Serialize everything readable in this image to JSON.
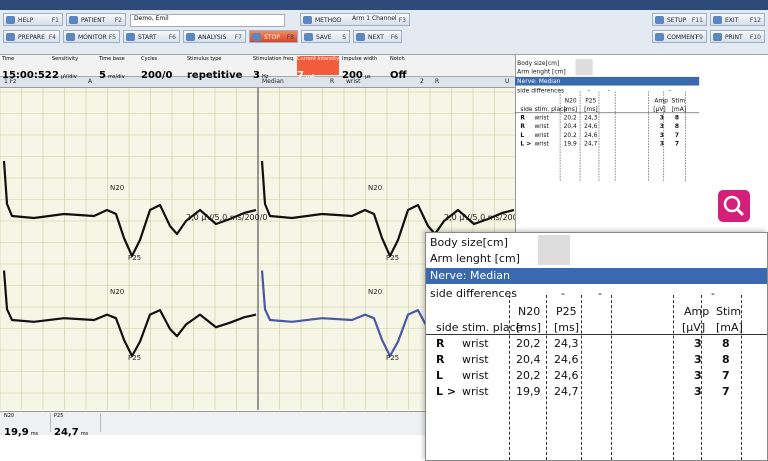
{
  "toolbar": {
    "row1_left": [
      {
        "label": "HELP",
        "key": "F1"
      },
      {
        "label": "PATIENT",
        "key": "F2"
      }
    ],
    "patient": "Demo, Emil",
    "method": {
      "label": "METHOD",
      "key": "F3",
      "value": "Arm 1 Channel"
    },
    "row1_right": [
      {
        "label": "SETUP",
        "key": "F11"
      },
      {
        "label": "EXIT",
        "key": "F12"
      }
    ],
    "row2_left": [
      {
        "label": "PREPARE",
        "key": "F4"
      },
      {
        "label": "MONITOR",
        "key": "F5"
      },
      {
        "label": "START",
        "key": "F6"
      },
      {
        "label": "ANALYSIS",
        "key": "F7"
      },
      {
        "label": "STOP",
        "key": "F8"
      },
      {
        "label": "SAVE",
        "key": "S"
      },
      {
        "label": "NEXT",
        "key": "F6"
      }
    ],
    "row2_right": [
      {
        "label": "COMMENT",
        "key": "F9"
      },
      {
        "label": "PRINT",
        "key": "F10"
      }
    ]
  },
  "params": [
    {
      "label": "Time",
      "value": "15:00:52",
      "unit": ""
    },
    {
      "label": "Sensitivity",
      "value": "2",
      "unit": "µV/div"
    },
    {
      "label": "Time base",
      "value": "5",
      "unit": "ms/div"
    },
    {
      "label": "Cycles",
      "value": "200/0",
      "unit": ""
    },
    {
      "label": "Stimulus type",
      "value": "repetitive",
      "unit": ""
    },
    {
      "label": "Stimulation freq.",
      "value": "3",
      "unit": "Hz"
    },
    {
      "label": "Current intensity",
      "value": "7",
      "unit": "mA"
    },
    {
      "label": "Impulse width",
      "value": "200",
      "unit": "µs"
    },
    {
      "label": "Notch",
      "value": "Off",
      "unit": ""
    }
  ],
  "channel_bar": [
    "1 Fz",
    "A",
    "Median",
    "R",
    "wrist",
    "2",
    "R",
    "U"
  ],
  "plot": {
    "scale_label": "2,0 µV/5,0 ms/200/0",
    "peaks": [
      "N20",
      "P25"
    ]
  },
  "latencies": [
    {
      "label": "N20",
      "value": "19,9",
      "unit": "ms"
    },
    {
      "label": "P25",
      "value": "24,7",
      "unit": "ms"
    }
  ],
  "table": {
    "body_size": "Body size[cm]",
    "arm_length": "Arm lenght [cm]",
    "nerve": "Nerve: Median",
    "side_differences": "side differences",
    "diff_marks": [
      "-",
      "-",
      "-"
    ],
    "header1": [
      "N20",
      "P25",
      "Amp",
      "Stim"
    ],
    "header2": [
      "side",
      "stim. place",
      "[ms]",
      "[ms]",
      "[µV]",
      "[mA]"
    ],
    "rows": [
      [
        "R",
        "wrist",
        "20,2",
        "24,3",
        "3",
        "8"
      ],
      [
        "R",
        "wrist",
        "20,4",
        "24,6",
        "3",
        "8"
      ],
      [
        "L",
        "wrist",
        "20,2",
        "24,6",
        "3",
        "7"
      ],
      [
        "L >",
        "wrist",
        "19,9",
        "24,7",
        "3",
        "7"
      ]
    ]
  }
}
